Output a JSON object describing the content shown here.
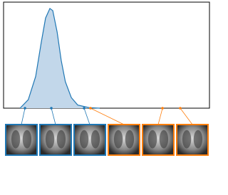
{
  "chart_data": {
    "type": "density",
    "x": [
      8,
      12,
      15.6,
      18.3,
      20.4,
      22.5,
      23.9,
      26,
      28,
      30,
      32.9,
      36,
      41.5,
      46.7
    ],
    "values": [
      0,
      0.08,
      0.3,
      0.62,
      0.85,
      0.94,
      0.92,
      0.72,
      0.45,
      0.25,
      0.1,
      0.03,
      0.005,
      0
    ],
    "color": "#1f77b4",
    "fill": "#c2d7ea",
    "xlim": [
      0,
      100
    ],
    "ylim": [
      0,
      1
    ],
    "points": [
      {
        "color": "#1f77b4",
        "x": [
          10.4,
          23.2,
          39.1
        ]
      },
      {
        "color": "#ff7f0e",
        "x": [
          42.2,
          77.2,
          85.8
        ]
      }
    ]
  }
}
